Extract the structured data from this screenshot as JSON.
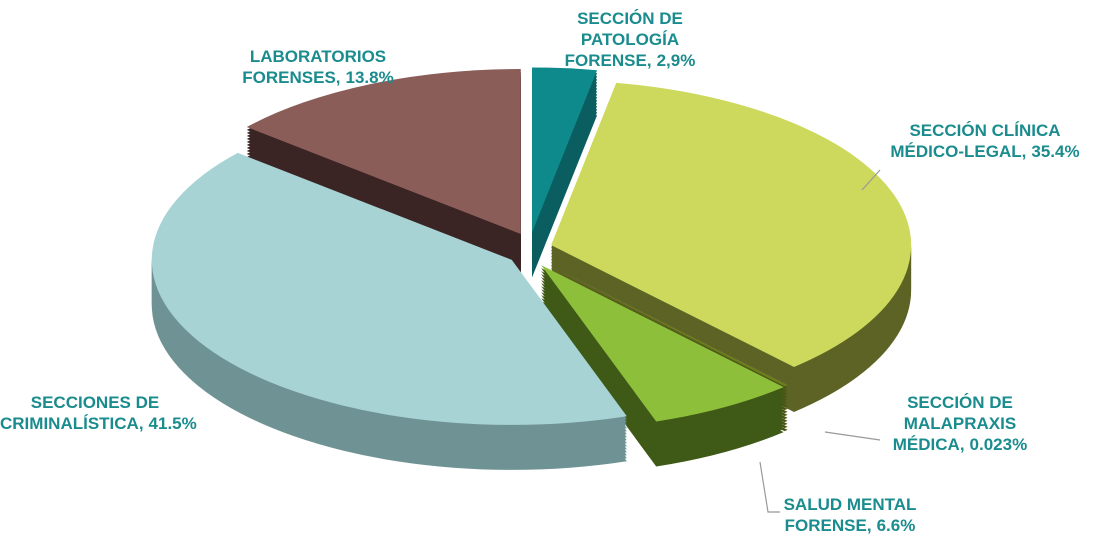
{
  "chart_data": {
    "type": "pie",
    "categories": [
      "SECCIÓN DE PATOLOGÍA FORENSE,",
      "SECCIÓN CLÍNICA MÉDICO-LEGAL,",
      "SECCIÓN DE MALAPRAXIS MÉDICA,",
      "SALUD MENTAL FORENSE,",
      "SECCIONES DE CRIMINALÍSTICA,",
      "LABORATORIOS FORENSES,"
    ],
    "values": [
      2.9,
      35.4,
      0.023,
      6.6,
      41.5,
      13.8
    ],
    "value_labels": [
      "2,9%",
      "35.4%",
      "0.023%",
      "6.6%",
      "41.5%",
      "13.8%"
    ],
    "colors": [
      "#0f8a8c",
      "#cdd95c",
      "#6e7d1f",
      "#8dbf3b",
      "#a8d3d4",
      "#8a5d59"
    ],
    "side_colors": [
      "#0a5e60",
      "#5d6325",
      "#4a5614",
      "#3f5a16",
      "#6f9394",
      "#3a2424"
    ],
    "label_color": "#1b8c8e"
  }
}
